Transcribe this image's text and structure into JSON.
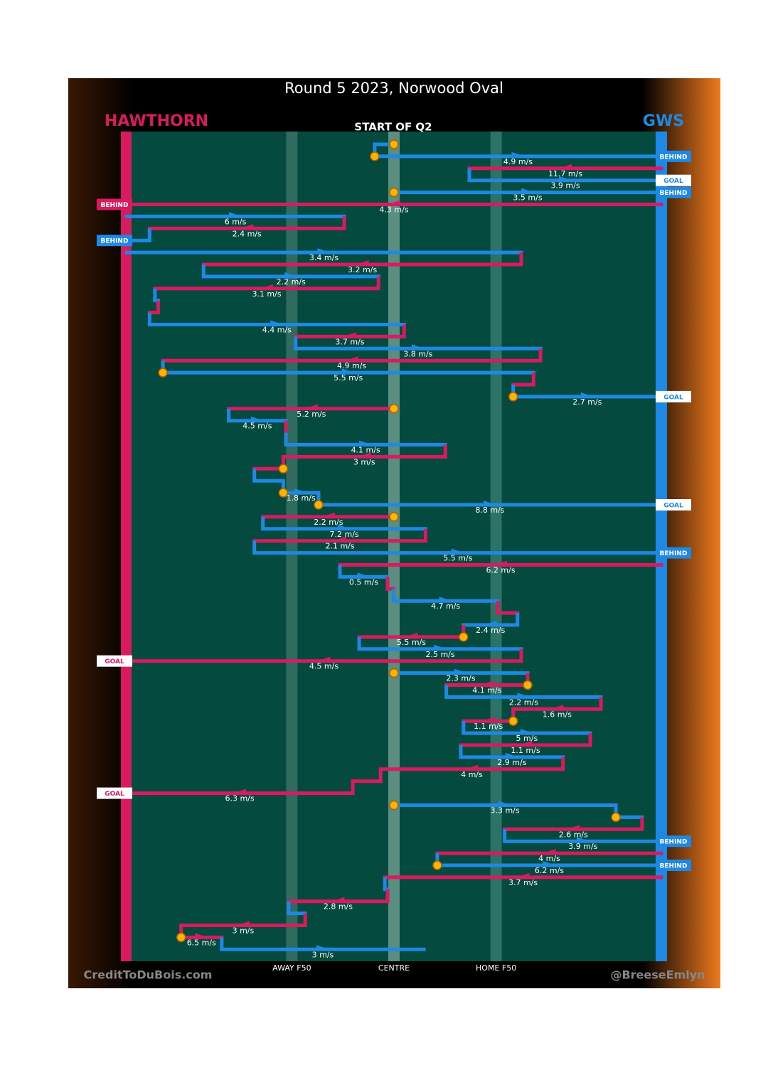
{
  "chart_data": {
    "type": "flow",
    "title": "Round 5 2023, Norwood Oval",
    "subtitle": "START OF Q2",
    "teams": [
      {
        "name": "HAWTHORN",
        "color": "#d81b5f"
      },
      {
        "name": "GWS",
        "color": "#1e88e5"
      }
    ],
    "credit_left": "CreditToDuBois.com",
    "credit_right": "@BreeseEmlyn",
    "xlim": [
      0,
      100
    ],
    "xticks": [
      {
        "value": 30.9,
        "label": "AWAY F50"
      },
      {
        "value": 50,
        "label": "CENTRE"
      },
      {
        "value": 69.1,
        "label": "HOME F50"
      }
    ],
    "moves": [
      {
        "team": "GWS",
        "from": 50,
        "to": 46.4,
        "dot": true
      },
      {
        "team": "GWS",
        "from": 46.4,
        "to": 100,
        "label": "4.9 m/s",
        "dot": true,
        "end": "BEHIND"
      },
      {
        "team": "HAWTHORN",
        "from": 100,
        "to": 64.1,
        "label": "11.7 m/s"
      },
      {
        "team": "GWS",
        "from": 64.1,
        "to": 100,
        "label": "3.9 m/s",
        "end": "GOAL"
      },
      {
        "team": "GWS",
        "from": 50,
        "to": 100,
        "label": "3.5 m/s",
        "dot": true,
        "end": "BEHIND"
      },
      {
        "team": "HAWTHORN",
        "from": 100,
        "to": 0,
        "label": "4.3 m/s",
        "end": "BEHIND"
      },
      {
        "team": "GWS",
        "from": 0,
        "to": 40.7,
        "label": "6 m/s"
      },
      {
        "team": "HAWTHORN",
        "from": 40.7,
        "to": 4.3,
        "label": "2.4 m/s"
      },
      {
        "team": "GWS",
        "from": 4.3,
        "to": 0,
        "end": "BEHIND"
      },
      {
        "team": "GWS",
        "from": 0,
        "to": 73.8,
        "label": "3.4 m/s"
      },
      {
        "team": "HAWTHORN",
        "from": 73.8,
        "to": 14.4,
        "label": "3.2 m/s"
      },
      {
        "team": "GWS",
        "from": 14.4,
        "to": 47.1,
        "label": "2.2 m/s"
      },
      {
        "team": "HAWTHORN",
        "from": 47.1,
        "to": 5.3,
        "label": "3.1 m/s"
      },
      {
        "team": "GWS",
        "from": 5.3,
        "to": 5.9
      },
      {
        "team": "HAWTHORN",
        "from": 5.9,
        "to": 4.3
      },
      {
        "team": "GWS",
        "from": 4.3,
        "to": 51.9,
        "label": "4.4 m/s"
      },
      {
        "team": "HAWTHORN",
        "from": 51.9,
        "to": 31.6,
        "label": "3.7 m/s"
      },
      {
        "team": "GWS",
        "from": 31.6,
        "to": 77.4,
        "label": "3.8 m/s"
      },
      {
        "team": "HAWTHORN",
        "from": 77.4,
        "to": 6.8,
        "label": "4.9 m/s"
      },
      {
        "team": "GWS",
        "from": 6.8,
        "to": 76.1,
        "label": "5.5 m/s",
        "dot": true
      },
      {
        "team": "HAWTHORN",
        "from": 76.1,
        "to": 72.3
      },
      {
        "team": "GWS",
        "from": 72.3,
        "to": 100,
        "label": "2.7 m/s",
        "dot": true,
        "end": "GOAL"
      },
      {
        "team": "HAWTHORN",
        "from": 50,
        "to": 19.1,
        "label": "5.2 m/s",
        "dot": true
      },
      {
        "team": "GWS",
        "from": 19.1,
        "to": 29.8,
        "label": "4.5 m/s"
      },
      {
        "team": "HAWTHORN",
        "from": 29.8,
        "to": 29.8
      },
      {
        "team": "GWS",
        "from": 29.8,
        "to": 59.6,
        "label": "4.1 m/s"
      },
      {
        "team": "HAWTHORN",
        "from": 59.6,
        "to": 29.3,
        "label": "3 m/s"
      },
      {
        "team": "HAWTHORN",
        "from": 29.3,
        "to": 23.9,
        "dot": true
      },
      {
        "team": "GWS",
        "from": 23.9,
        "to": 29.3
      },
      {
        "team": "GWS",
        "from": 29.3,
        "to": 35.9,
        "label": "1.8 m/s",
        "dot": true
      },
      {
        "team": "GWS",
        "from": 35.9,
        "to": 100,
        "label": "8.8 m/s",
        "dot": true,
        "end": "GOAL"
      },
      {
        "team": "HAWTHORN",
        "from": 50,
        "to": 25.5,
        "label": "2.2 m/s",
        "dot": true
      },
      {
        "team": "GWS",
        "from": 25.5,
        "to": 55.9,
        "label": "7.2 m/s"
      },
      {
        "team": "HAWTHORN",
        "from": 55.9,
        "to": 23.9,
        "label": "2.1 m/s"
      },
      {
        "team": "GWS",
        "from": 23.9,
        "to": 100,
        "label": "5.5 m/s",
        "end": "BEHIND"
      },
      {
        "team": "HAWTHORN",
        "from": 100,
        "to": 39.9,
        "label": "6.2 m/s"
      },
      {
        "team": "GWS",
        "from": 39.9,
        "to": 48.8,
        "label": "0.5 m/s"
      },
      {
        "team": "HAWTHORN",
        "from": 48.8,
        "to": 49.9
      },
      {
        "team": "GWS",
        "from": 49.9,
        "to": 69.4,
        "label": "4.7 m/s"
      },
      {
        "team": "HAWTHORN",
        "from": 69.4,
        "to": 73.1
      },
      {
        "team": "GWS",
        "from": 73.1,
        "to": 63,
        "label": "2.4 m/s"
      },
      {
        "team": "HAWTHORN",
        "from": 63,
        "to": 43.5,
        "label": "5.5 m/s",
        "dot": true
      },
      {
        "team": "GWS",
        "from": 43.5,
        "to": 73.8,
        "label": "2.5 m/s"
      },
      {
        "team": "HAWTHORN",
        "from": 73.8,
        "to": 0,
        "label": "4.5 m/s",
        "end": "GOAL"
      },
      {
        "team": "GWS",
        "from": 50,
        "to": 75,
        "label": "2.3 m/s",
        "dot": true
      },
      {
        "team": "HAWTHORN",
        "from": 75,
        "to": 59.8,
        "label": "4.1 m/s",
        "dot": true
      },
      {
        "team": "GWS",
        "from": 59.8,
        "to": 88.7,
        "label": "2.2 m/s"
      },
      {
        "team": "HAWTHORN",
        "from": 88.7,
        "to": 72.3,
        "label": "1.6 m/s"
      },
      {
        "team": "HAWTHORN",
        "from": 72.3,
        "to": 63,
        "label": "1.1 m/s",
        "dot": true
      },
      {
        "team": "GWS",
        "from": 63,
        "to": 86.7,
        "label": "5 m/s"
      },
      {
        "team": "HAWTHORN",
        "from": 86.7,
        "to": 62.5,
        "label": "1.1 m/s"
      },
      {
        "team": "GWS",
        "from": 62.5,
        "to": 81.6,
        "label": "2.9 m/s"
      },
      {
        "team": "HAWTHORN",
        "from": 81.6,
        "to": 47.5,
        "label": "4 m/s"
      },
      {
        "team": "HAWTHORN",
        "from": 47.5,
        "to": 42.3
      },
      {
        "team": "HAWTHORN",
        "from": 42.3,
        "to": 0,
        "label": "6.3 m/s",
        "end": "GOAL"
      },
      {
        "team": "GWS",
        "from": 50,
        "to": 91.5,
        "label": "3.3 m/s",
        "dot": true
      },
      {
        "team": "GWS",
        "from": 91.5,
        "to": 96.4,
        "dot": true
      },
      {
        "team": "HAWTHORN",
        "from": 96.4,
        "to": 70.7,
        "label": "2.6 m/s"
      },
      {
        "team": "GWS",
        "from": 70.7,
        "to": 100,
        "label": "3.9 m/s",
        "end": "BEHIND"
      },
      {
        "team": "HAWTHORN",
        "from": 100,
        "to": 58.1,
        "label": "4 m/s"
      },
      {
        "team": "GWS",
        "from": 58.1,
        "to": 100,
        "label": "6.2 m/s",
        "dot": true,
        "end": "BEHIND"
      },
      {
        "team": "HAWTHORN",
        "from": 100,
        "to": 48.3,
        "label": "3.7 m/s"
      },
      {
        "team": "GWS",
        "from": 48.3,
        "to": 48.8
      },
      {
        "team": "HAWTHORN",
        "from": 48.8,
        "to": 30.3,
        "label": "2.8 m/s"
      },
      {
        "team": "GWS",
        "from": 30.3,
        "to": 33.4
      },
      {
        "team": "HAWTHORN",
        "from": 33.4,
        "to": 10.2,
        "label": "3 m/s"
      },
      {
        "team": "HAWTHORN",
        "from": 10.2,
        "to": 17.8,
        "label": "6.5 m/s",
        "dot": true
      },
      {
        "team": "GWS",
        "from": 17.8,
        "to": 55.6,
        "label": "3 m/s"
      }
    ]
  }
}
